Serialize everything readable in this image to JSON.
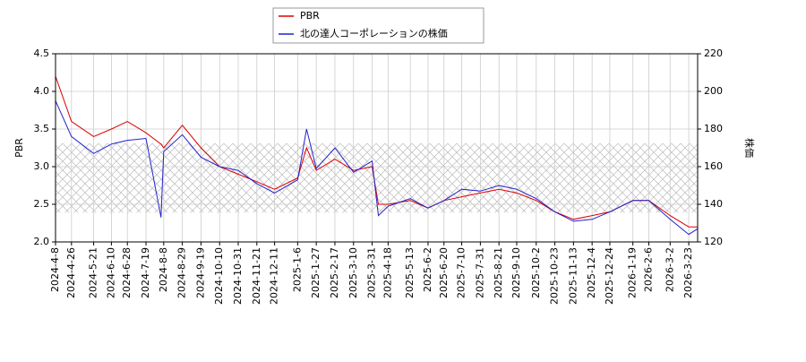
{
  "chart_data": {
    "type": "line",
    "y_label": "PBR",
    "y2_label": "株価",
    "x": [
      "2024-4-8",
      "2024-4-26",
      "2024-5-21",
      "2024-6-10",
      "2024-6-28",
      "2024-7-19",
      "2024-8-5",
      "2024-8-8",
      "2024-8-29",
      "2024-9-19",
      "2024-10-10",
      "2024-10-31",
      "2024-11-21",
      "2024-12-11",
      "2025-1-6",
      "2025-1-16",
      "2025-1-27",
      "2025-2-17",
      "2025-3-10",
      "2025-3-31",
      "2025-4-7",
      "2025-4-18",
      "2025-5-13",
      "2025-6-2",
      "2025-6-20",
      "2025-7-10",
      "2025-7-31",
      "2025-8-21",
      "2025-9-10",
      "2025-10-2",
      "2025-10-23",
      "2025-11-13",
      "2025-12-4",
      "2025-12-24",
      "2026-1-19",
      "2026-2-6",
      "2026-3-2",
      "2026-3-23",
      "2026-4-2"
    ],
    "series": [
      {
        "name": "PBR",
        "color": "#dd0000",
        "axis": "y",
        "values": [
          4.2,
          3.6,
          3.4,
          3.5,
          3.6,
          3.45,
          3.3,
          3.25,
          3.55,
          3.25,
          3.0,
          2.9,
          2.8,
          2.7,
          2.85,
          3.25,
          2.95,
          3.1,
          2.95,
          3.0,
          2.5,
          2.5,
          2.55,
          2.45,
          2.55,
          2.6,
          2.65,
          2.7,
          2.65,
          2.55,
          2.4,
          2.3,
          2.35,
          2.4,
          2.55,
          2.55,
          2.35,
          2.2,
          2.2
        ]
      },
      {
        "name": "北の達人コーポレーションの株価",
        "color": "#2222cc",
        "axis": "y2",
        "values": [
          195,
          176,
          167,
          172,
          174,
          175,
          133,
          168,
          177,
          165,
          160,
          158,
          151,
          146,
          153,
          180,
          159,
          170,
          157,
          163,
          134,
          139,
          143,
          138,
          142,
          148,
          147,
          150,
          148,
          143,
          136,
          131,
          132,
          136,
          142,
          142,
          132,
          124,
          127
        ]
      }
    ],
    "shaded_range": [
      2.39,
      3.31
    ],
    "xlim": [
      "2024-4-8",
      "2026-4-2"
    ],
    "xticks": [
      "2024-4-8",
      "2024-4-26",
      "2024-5-21",
      "2024-6-10",
      "2024-6-28",
      "2024-7-19",
      "2024-8-8",
      "2024-8-29",
      "2024-9-19",
      "2024-10-10",
      "2024-10-31",
      "2024-11-21",
      "2024-12-11",
      "2025-1-6",
      "2025-1-27",
      "2025-2-17",
      "2025-3-10",
      "2025-3-31",
      "2025-4-18",
      "2025-5-13",
      "2025-6-2",
      "2025-6-20",
      "2025-7-10",
      "2025-7-31",
      "2025-8-21",
      "2025-9-10",
      "2025-10-2",
      "2025-10-23",
      "2025-11-13",
      "2025-12-4",
      "2025-12-24",
      "2026-1-19",
      "2026-2-6",
      "2026-3-2",
      "2026-3-23"
    ],
    "ylim": [
      2.0,
      4.5
    ],
    "yticks": [
      {
        "value": 2,
        "label": "2.0"
      },
      {
        "value": 2.5,
        "label": "2.5"
      },
      {
        "value": 3,
        "label": "3.0"
      },
      {
        "value": 3.5,
        "label": "3.5"
      },
      {
        "value": 4,
        "label": "4.0"
      },
      {
        "value": 4.5,
        "label": "4.5"
      }
    ],
    "y2lim": [
      120,
      220
    ],
    "y2ticks": [
      120,
      140,
      160,
      180,
      200,
      220
    ],
    "grid": true,
    "legend": "top"
  }
}
